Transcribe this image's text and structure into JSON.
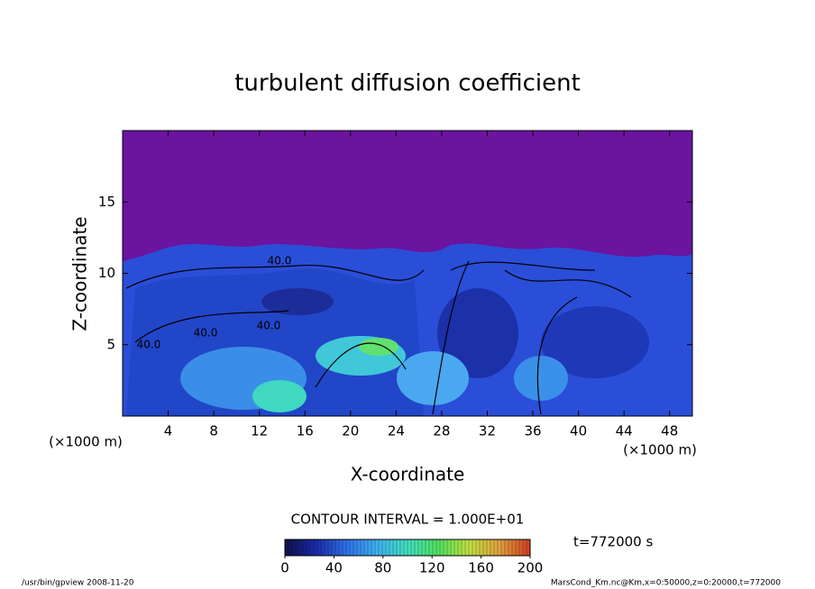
{
  "chart_data": {
    "type": "contour",
    "title": "turbulent diffusion coefficient",
    "x_label": "X-coordinate",
    "y_label": "Z-coordinate",
    "x_unit": "(×1000 m)",
    "xlim": [
      0,
      50
    ],
    "xticks": [
      4,
      8,
      12,
      16,
      20,
      24,
      28,
      32,
      36,
      40,
      44,
      48
    ],
    "ylim": [
      0,
      20
    ],
    "yticks": [
      5,
      10,
      15
    ],
    "contour_labels": [
      "40.0",
      "40.0",
      "40.0",
      "40.0"
    ],
    "contour_interval": "CONTOUR INTERVAL = 1.000E+01",
    "time_label": "t=772000 s",
    "colorbar": {
      "lim": [
        0,
        200
      ],
      "ticks": [
        0,
        40,
        80,
        120,
        160,
        200
      ],
      "colors": [
        "#10104a",
        "#1a2aa8",
        "#2f6fe8",
        "#3fb0f0",
        "#40e0c0",
        "#50e060",
        "#c0e040",
        "#e0a040",
        "#d04020"
      ]
    },
    "footer_left": "/usr/bin/gpview  2008-11-20",
    "footer_right": "MarsCond_Km.nc@Km,x=0:50000,z=0:20000,t=772000"
  }
}
